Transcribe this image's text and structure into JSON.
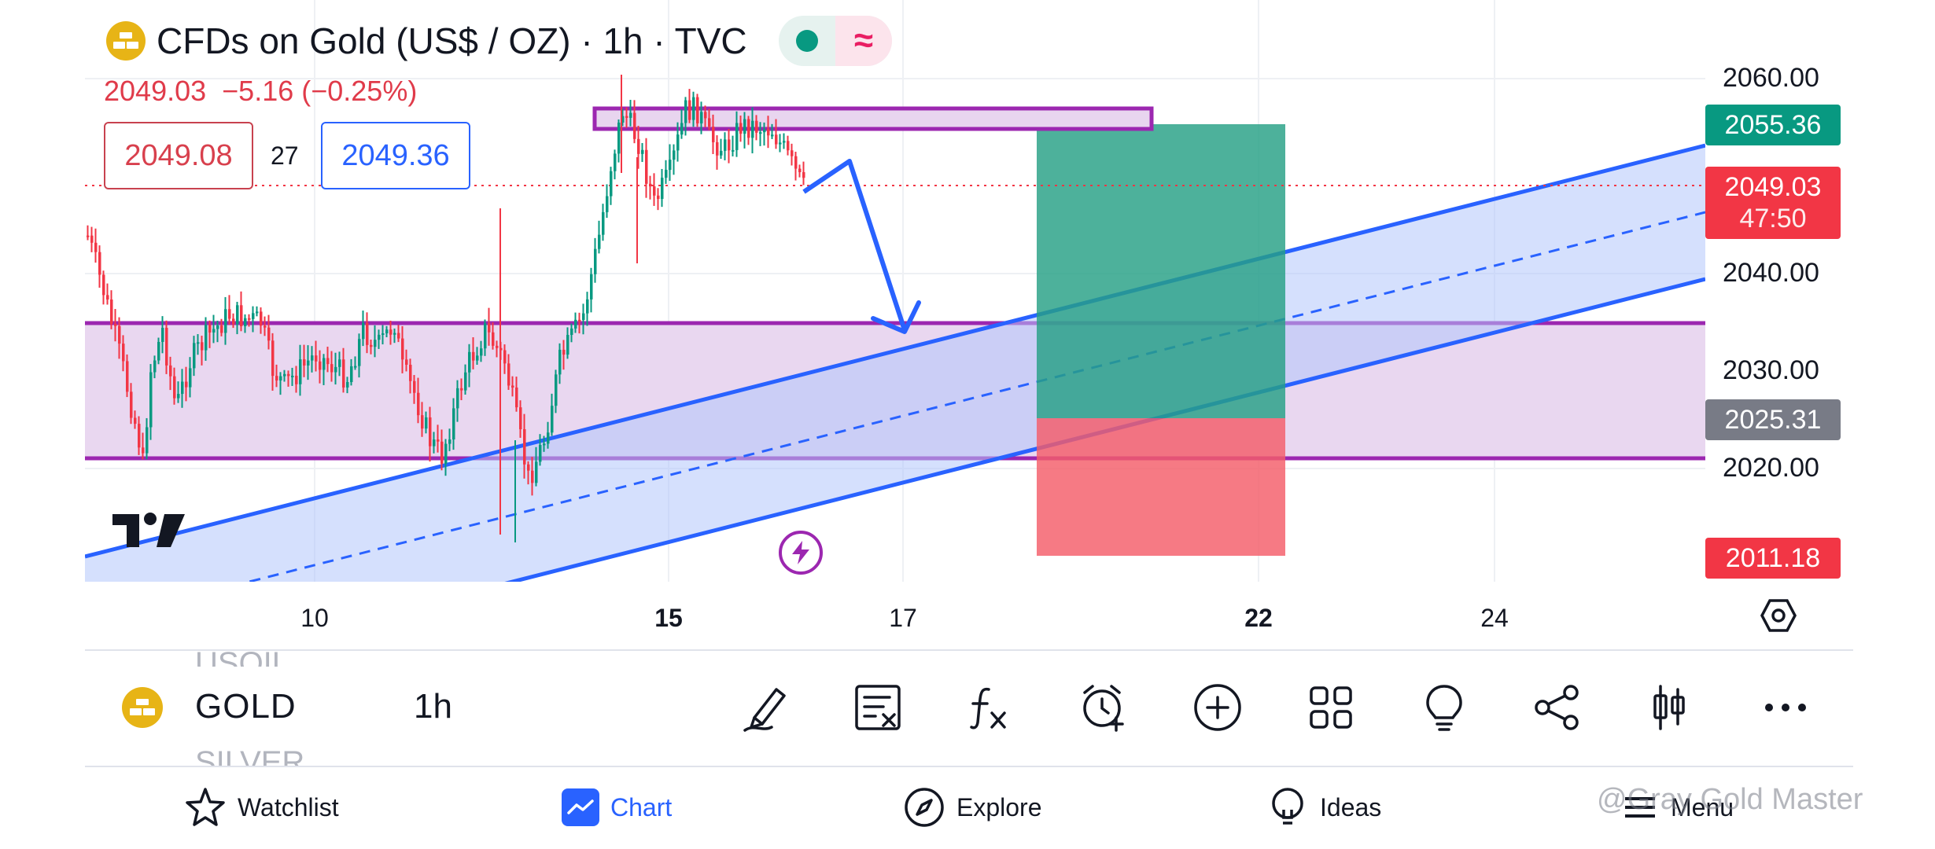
{
  "header": {
    "title": "CFDs on Gold (US$ / OZ) · 1h · TVC",
    "last_price": "2049.03",
    "change": "−5.16 (−0.25%)",
    "bid": "2049.08",
    "spread": "27",
    "ask": "2049.36"
  },
  "price_axis": {
    "labels": [
      "2060.00",
      "2040.00",
      "2030.00",
      "2020.00"
    ],
    "tags": {
      "take_profit": "2055.36",
      "current_price": "2049.03",
      "countdown": "47:50",
      "entry": "2025.31",
      "stop_loss": "2011.18"
    }
  },
  "time_axis": {
    "labels": [
      "10",
      "15",
      "17",
      "22",
      "24"
    ]
  },
  "symbol_bar": {
    "prev_symbol": "USOIL",
    "symbol": "GOLD",
    "next_symbol": "SILVER",
    "interval": "1h"
  },
  "toolbar": {
    "icons": [
      "brush-icon",
      "object-tree-icon",
      "indicators-icon",
      "alert-icon",
      "add-icon",
      "layouts-icon",
      "ideas-icon",
      "share-icon",
      "chart-type-icon",
      "more-icon"
    ]
  },
  "bottom_nav": {
    "items": [
      {
        "label": "Watchlist",
        "icon": "star-icon"
      },
      {
        "label": "Chart",
        "icon": "chart-icon"
      },
      {
        "label": "Explore",
        "icon": "compass-icon"
      },
      {
        "label": "Ideas",
        "icon": "lightbulb-icon"
      },
      {
        "label": "Menu",
        "icon": "menu-icon"
      }
    ]
  },
  "watermark": "@Gray Gold Master",
  "colors": {
    "up": "#089981",
    "down": "#f23645",
    "accent": "#2962ff",
    "zone": "#9c27b0"
  }
}
